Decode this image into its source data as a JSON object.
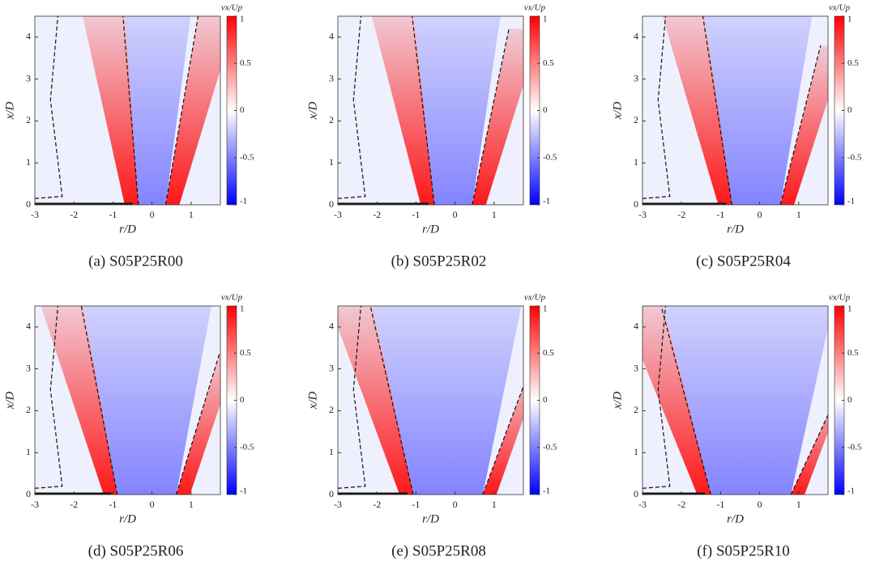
{
  "chart_data": [
    {
      "type": "contour",
      "caption": "(a) S05P25R00",
      "xlabel": "r/D",
      "ylabel": "x/D",
      "colorbar_label": "vx/Up",
      "xlim": [
        -3,
        1.75
      ],
      "ylim": [
        0,
        4.5
      ],
      "xticks": [
        -3,
        -2,
        -1,
        0,
        1
      ],
      "yticks": [
        0,
        1,
        2,
        3,
        4
      ],
      "clim": [
        -1,
        1
      ],
      "cticks": [
        -1,
        -0.5,
        0,
        0.5,
        1
      ],
      "colormap": [
        "#0000ff",
        "#ffffff",
        "#ff0000"
      ]
    },
    {
      "type": "contour",
      "caption": "(b) S05P25R02",
      "xlabel": "r/D",
      "ylabel": "x/D",
      "colorbar_label": "vx/Up",
      "xlim": [
        -3,
        1.75
      ],
      "ylim": [
        0,
        4.5
      ],
      "xticks": [
        -3,
        -2,
        -1,
        0,
        1
      ],
      "yticks": [
        0,
        1,
        2,
        3,
        4
      ],
      "clim": [
        -1,
        1
      ],
      "cticks": [
        -1,
        -0.5,
        0,
        0.5,
        1
      ],
      "colormap": [
        "#0000ff",
        "#ffffff",
        "#ff0000"
      ]
    },
    {
      "type": "contour",
      "caption": "(c) S05P25R04",
      "xlabel": "r/D",
      "ylabel": "x/D",
      "colorbar_label": "vx/Up",
      "xlim": [
        -3,
        1.75
      ],
      "ylim": [
        0,
        4.5
      ],
      "xticks": [
        -3,
        -2,
        -1,
        0,
        1
      ],
      "yticks": [
        0,
        1,
        2,
        3,
        4
      ],
      "clim": [
        -1,
        1
      ],
      "cticks": [
        -1,
        -0.5,
        0,
        0.5,
        1
      ],
      "colormap": [
        "#0000ff",
        "#ffffff",
        "#ff0000"
      ]
    },
    {
      "type": "contour",
      "caption": "(d) S05P25R06",
      "xlabel": "r/D",
      "ylabel": "x/D",
      "colorbar_label": "vx/Up",
      "xlim": [
        -3,
        1.75
      ],
      "ylim": [
        0,
        4.5
      ],
      "xticks": [
        -3,
        -2,
        -1,
        0,
        1
      ],
      "yticks": [
        0,
        1,
        2,
        3,
        4
      ],
      "clim": [
        -1,
        1
      ],
      "cticks": [
        -1,
        -0.5,
        0,
        0.5,
        1
      ],
      "colormap": [
        "#0000ff",
        "#ffffff",
        "#ff0000"
      ]
    },
    {
      "type": "contour",
      "caption": "(e) S05P25R08",
      "xlabel": "r/D",
      "ylabel": "x/D",
      "colorbar_label": "vx/Up",
      "xlim": [
        -3,
        1.75
      ],
      "ylim": [
        0,
        4.5
      ],
      "xticks": [
        -3,
        -2,
        -1,
        0,
        1
      ],
      "yticks": [
        0,
        1,
        2,
        3,
        4
      ],
      "clim": [
        -1,
        1
      ],
      "cticks": [
        -1,
        -0.5,
        0,
        0.5,
        1
      ],
      "colormap": [
        "#0000ff",
        "#ffffff",
        "#ff0000"
      ]
    },
    {
      "type": "contour",
      "caption": "(f) S05P25R10",
      "xlabel": "r/D",
      "ylabel": "x/D",
      "colorbar_label": "vx/Up",
      "xlim": [
        -3,
        1.75
      ],
      "ylim": [
        0,
        4.5
      ],
      "xticks": [
        -3,
        -2,
        -1,
        0,
        1
      ],
      "yticks": [
        0,
        1,
        2,
        3,
        4
      ],
      "clim": [
        -1,
        1
      ],
      "cticks": [
        -1,
        -0.5,
        0,
        0.5,
        1
      ],
      "colormap": [
        "#0000ff",
        "#ffffff",
        "#ff0000"
      ]
    }
  ]
}
